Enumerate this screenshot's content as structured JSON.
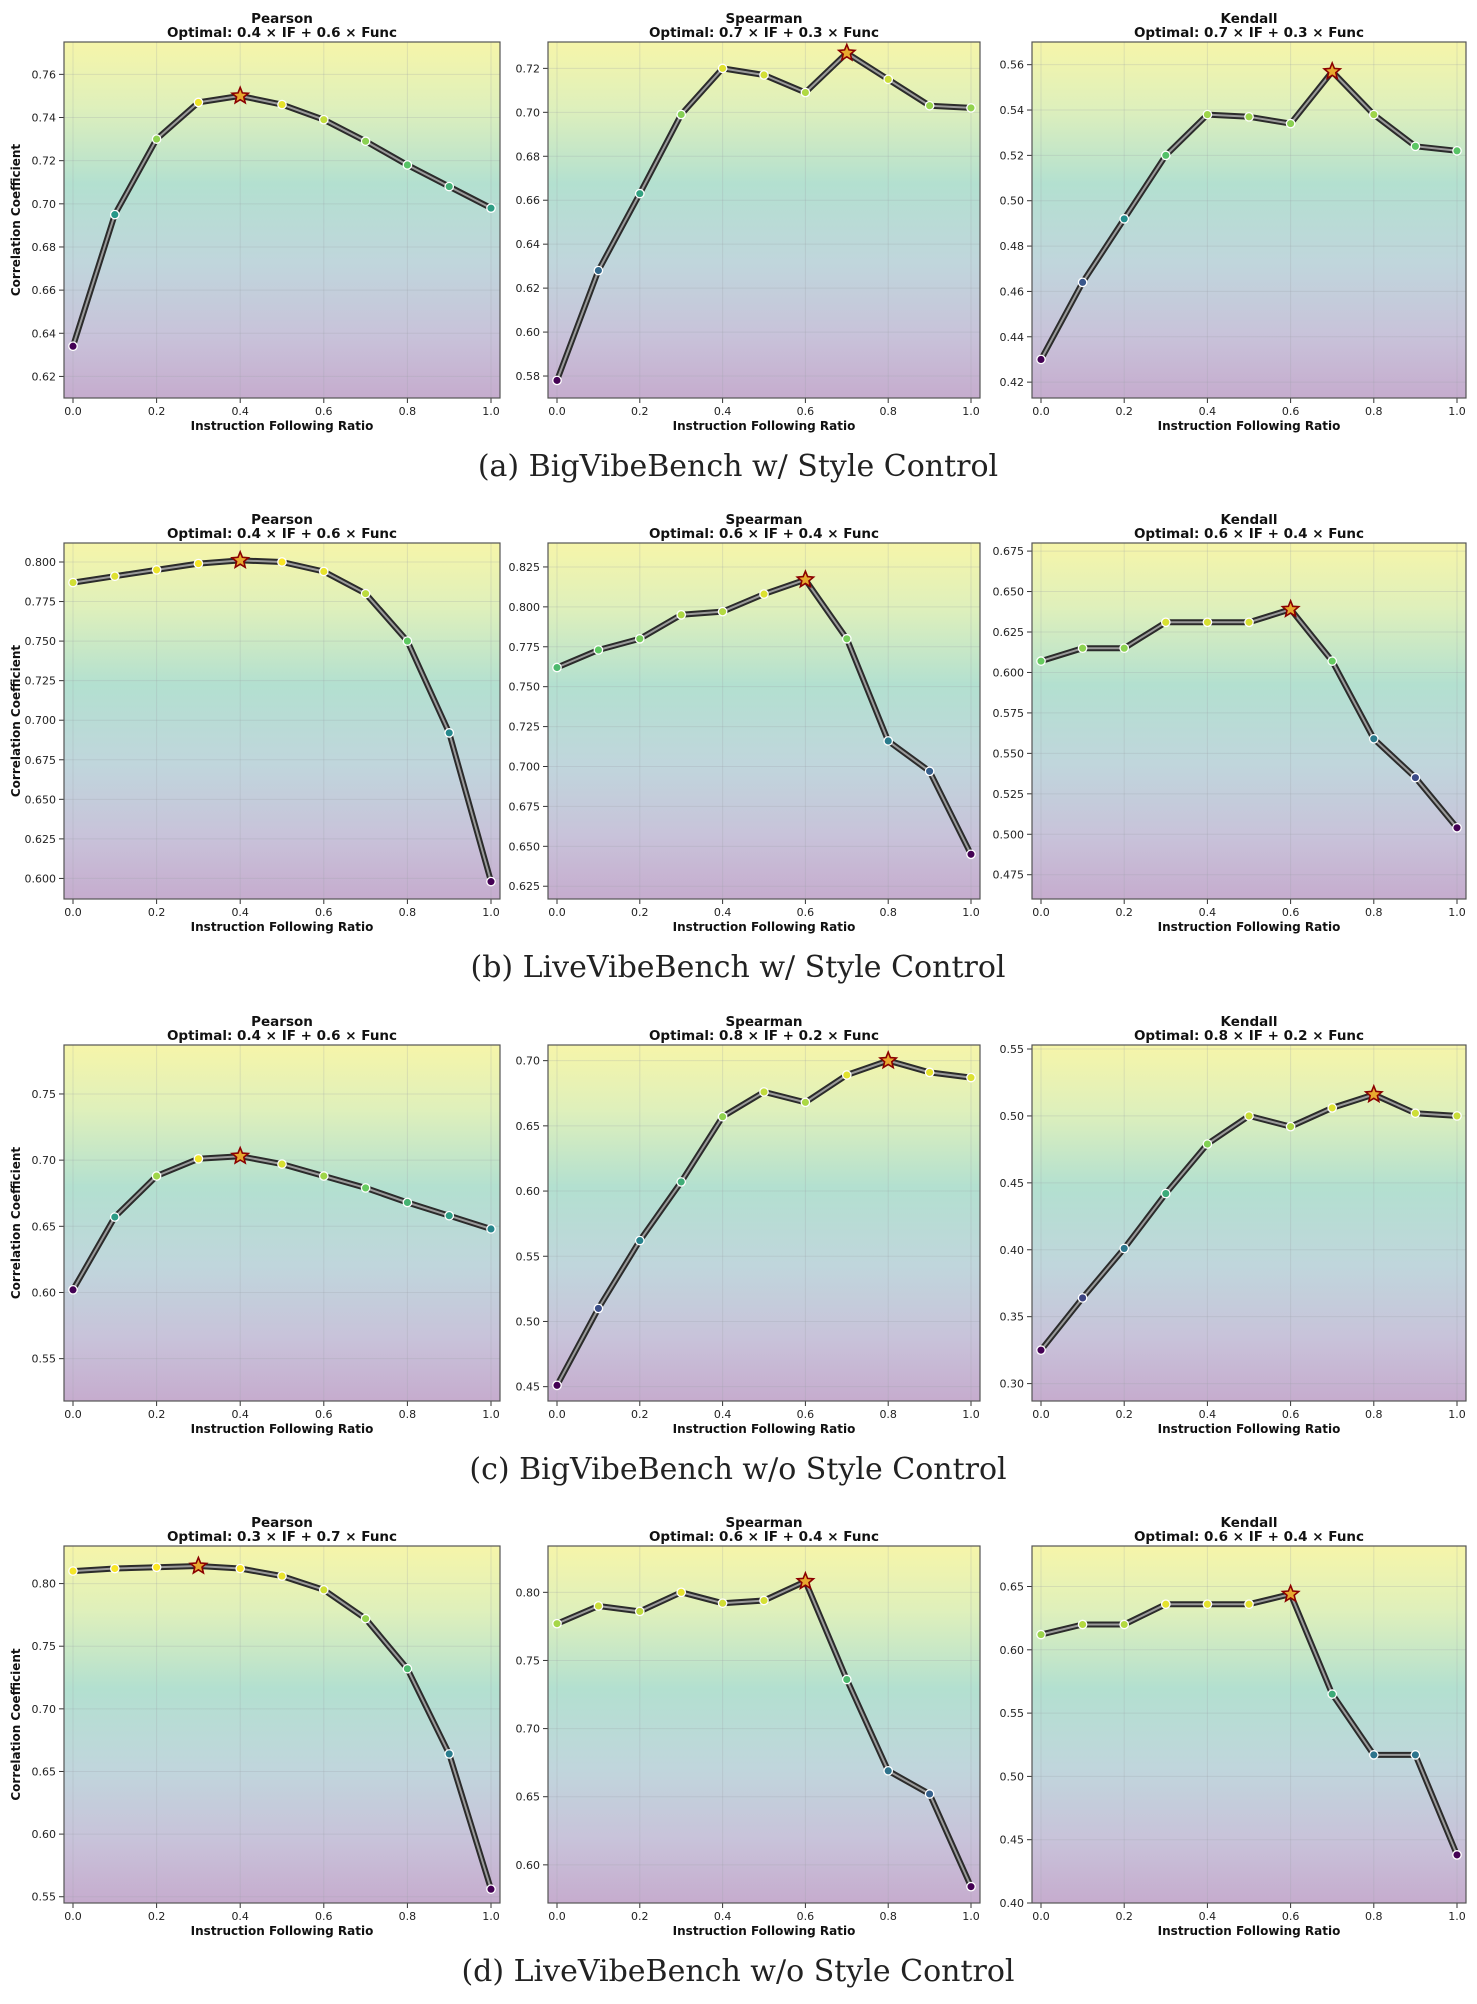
{
  "figure": {
    "x_axis_label": "Instruction Following Ratio",
    "y_axis_label": "Correlation Coefficient",
    "x_ticks": [
      "0.0",
      "0.2",
      "0.4",
      "0.6",
      "0.8",
      "1.0"
    ]
  },
  "chart_data": [
    {
      "group": "a",
      "caption": "(a) BigVibeBench w/ Style Control",
      "panels": [
        {
          "type": "line",
          "title": "Pearson",
          "subtitle": "Optimal: 0.4 × IF + 0.6 × Func",
          "x": [
            0.0,
            0.1,
            0.2,
            0.3,
            0.4,
            0.5,
            0.6,
            0.7,
            0.8,
            0.9,
            1.0
          ],
          "y": [
            0.634,
            0.695,
            0.73,
            0.747,
            0.75,
            0.746,
            0.739,
            0.729,
            0.718,
            0.708,
            0.698
          ],
          "optimal_index": 4,
          "ylim": [
            0.61,
            0.775
          ],
          "y_ticks": [
            "0.62",
            "0.64",
            "0.66",
            "0.68",
            "0.70",
            "0.72",
            "0.74",
            "0.76"
          ],
          "xlabel": "Instruction Following Ratio",
          "ylabel": "Correlation Coefficient"
        },
        {
          "type": "line",
          "title": "Spearman",
          "subtitle": "Optimal: 0.7 × IF + 0.3 × Func",
          "x": [
            0.0,
            0.1,
            0.2,
            0.3,
            0.4,
            0.5,
            0.6,
            0.7,
            0.8,
            0.9,
            1.0
          ],
          "y": [
            0.578,
            0.628,
            0.663,
            0.699,
            0.72,
            0.717,
            0.709,
            0.727,
            0.715,
            0.703,
            0.702
          ],
          "optimal_index": 7,
          "ylim": [
            0.57,
            0.732
          ],
          "y_ticks": [
            "0.58",
            "0.60",
            "0.62",
            "0.64",
            "0.66",
            "0.68",
            "0.70",
            "0.72"
          ],
          "xlabel": "Instruction Following Ratio",
          "ylabel": ""
        },
        {
          "type": "line",
          "title": "Kendall",
          "subtitle": "Optimal: 0.7 × IF + 0.3 × Func",
          "x": [
            0.0,
            0.1,
            0.2,
            0.3,
            0.4,
            0.5,
            0.6,
            0.7,
            0.8,
            0.9,
            1.0
          ],
          "y": [
            0.43,
            0.464,
            0.492,
            0.52,
            0.538,
            0.537,
            0.534,
            0.557,
            0.538,
            0.524,
            0.522
          ],
          "optimal_index": 7,
          "ylim": [
            0.413,
            0.57
          ],
          "y_ticks": [
            "0.42",
            "0.44",
            "0.46",
            "0.48",
            "0.50",
            "0.52",
            "0.54",
            "0.56"
          ],
          "xlabel": "Instruction Following Ratio",
          "ylabel": ""
        }
      ]
    },
    {
      "group": "b",
      "caption": "(b) LiveVibeBench w/ Style Control",
      "panels": [
        {
          "type": "line",
          "title": "Pearson",
          "subtitle": "Optimal: 0.4 × IF + 0.6 × Func",
          "x": [
            0.0,
            0.1,
            0.2,
            0.3,
            0.4,
            0.5,
            0.6,
            0.7,
            0.8,
            0.9,
            1.0
          ],
          "y": [
            0.787,
            0.791,
            0.795,
            0.799,
            0.801,
            0.8,
            0.794,
            0.78,
            0.75,
            0.692,
            0.598
          ],
          "optimal_index": 4,
          "ylim": [
            0.587,
            0.812
          ],
          "y_ticks": [
            "0.600",
            "0.625",
            "0.650",
            "0.675",
            "0.700",
            "0.725",
            "0.750",
            "0.775",
            "0.800"
          ],
          "xlabel": "Instruction Following Ratio",
          "ylabel": "Correlation Coefficient"
        },
        {
          "type": "line",
          "title": "Spearman",
          "subtitle": "Optimal: 0.6 × IF + 0.4 × Func",
          "x": [
            0.0,
            0.1,
            0.2,
            0.3,
            0.4,
            0.5,
            0.6,
            0.7,
            0.8,
            0.9,
            1.0
          ],
          "y": [
            0.762,
            0.773,
            0.78,
            0.795,
            0.797,
            0.808,
            0.817,
            0.78,
            0.716,
            0.697,
            0.645
          ],
          "optimal_index": 6,
          "ylim": [
            0.617,
            0.84
          ],
          "y_ticks": [
            "0.625",
            "0.650",
            "0.675",
            "0.700",
            "0.725",
            "0.750",
            "0.775",
            "0.800",
            "0.825"
          ],
          "xlabel": "Instruction Following Ratio",
          "ylabel": ""
        },
        {
          "type": "line",
          "title": "Kendall",
          "subtitle": "Optimal: 0.6 × IF + 0.4 × Func",
          "x": [
            0.0,
            0.1,
            0.2,
            0.3,
            0.4,
            0.5,
            0.6,
            0.7,
            0.8,
            0.9,
            1.0
          ],
          "y": [
            0.607,
            0.615,
            0.615,
            0.631,
            0.631,
            0.631,
            0.639,
            0.607,
            0.559,
            0.535,
            0.504
          ],
          "optimal_index": 6,
          "ylim": [
            0.46,
            0.68
          ],
          "y_ticks": [
            "0.475",
            "0.500",
            "0.525",
            "0.550",
            "0.575",
            "0.600",
            "0.625",
            "0.650",
            "0.675"
          ],
          "xlabel": "Instruction Following Ratio",
          "ylabel": ""
        }
      ]
    },
    {
      "group": "c",
      "caption": "(c) BigVibeBench w/o Style Control",
      "panels": [
        {
          "type": "line",
          "title": "Pearson",
          "subtitle": "Optimal: 0.4 × IF + 0.6 × Func",
          "x": [
            0.0,
            0.1,
            0.2,
            0.3,
            0.4,
            0.5,
            0.6,
            0.7,
            0.8,
            0.9,
            1.0
          ],
          "y": [
            0.602,
            0.657,
            0.688,
            0.701,
            0.703,
            0.697,
            0.688,
            0.679,
            0.668,
            0.658,
            0.648
          ],
          "optimal_index": 4,
          "ylim": [
            0.518,
            0.787
          ],
          "y_ticks": [
            "0.55",
            "0.60",
            "0.65",
            "0.70",
            "0.75"
          ],
          "xlabel": "Instruction Following Ratio",
          "ylabel": "Correlation Coefficient"
        },
        {
          "type": "line",
          "title": "Spearman",
          "subtitle": "Optimal: 0.8 × IF + 0.2 × Func",
          "x": [
            0.0,
            0.1,
            0.2,
            0.3,
            0.4,
            0.5,
            0.6,
            0.7,
            0.8,
            0.9,
            1.0
          ],
          "y": [
            0.451,
            0.51,
            0.562,
            0.607,
            0.657,
            0.676,
            0.668,
            0.689,
            0.7,
            0.691,
            0.687
          ],
          "optimal_index": 8,
          "ylim": [
            0.439,
            0.712
          ],
          "y_ticks": [
            "0.45",
            "0.50",
            "0.55",
            "0.60",
            "0.65",
            "0.70"
          ],
          "xlabel": "Instruction Following Ratio",
          "ylabel": ""
        },
        {
          "type": "line",
          "title": "Kendall",
          "subtitle": "Optimal: 0.8 × IF + 0.2 × Func",
          "x": [
            0.0,
            0.1,
            0.2,
            0.3,
            0.4,
            0.5,
            0.6,
            0.7,
            0.8,
            0.9,
            1.0
          ],
          "y": [
            0.325,
            0.364,
            0.401,
            0.442,
            0.479,
            0.5,
            0.492,
            0.506,
            0.516,
            0.502,
            0.5
          ],
          "optimal_index": 8,
          "ylim": [
            0.287,
            0.553
          ],
          "y_ticks": [
            "0.30",
            "0.35",
            "0.40",
            "0.45",
            "0.50",
            "0.55"
          ],
          "xlabel": "Instruction Following Ratio",
          "ylabel": ""
        }
      ]
    },
    {
      "group": "d",
      "caption": "(d) LiveVibeBench w/o Style Control",
      "panels": [
        {
          "type": "line",
          "title": "Pearson",
          "subtitle": "Optimal: 0.3 × IF + 0.7 × Func",
          "x": [
            0.0,
            0.1,
            0.2,
            0.3,
            0.4,
            0.5,
            0.6,
            0.7,
            0.8,
            0.9,
            1.0
          ],
          "y": [
            0.81,
            0.812,
            0.813,
            0.814,
            0.812,
            0.806,
            0.795,
            0.772,
            0.732,
            0.664,
            0.556
          ],
          "optimal_index": 3,
          "ylim": [
            0.545,
            0.83
          ],
          "y_ticks": [
            "0.55",
            "0.60",
            "0.65",
            "0.70",
            "0.75",
            "0.80"
          ],
          "xlabel": "Instruction Following Ratio",
          "ylabel": "Correlation Coefficient"
        },
        {
          "type": "line",
          "title": "Spearman",
          "subtitle": "Optimal: 0.6 × IF + 0.4 × Func",
          "x": [
            0.0,
            0.1,
            0.2,
            0.3,
            0.4,
            0.5,
            0.6,
            0.7,
            0.8,
            0.9,
            1.0
          ],
          "y": [
            0.777,
            0.79,
            0.786,
            0.8,
            0.792,
            0.794,
            0.808,
            0.736,
            0.669,
            0.652,
            0.584
          ],
          "optimal_index": 6,
          "ylim": [
            0.572,
            0.834
          ],
          "y_ticks": [
            "0.60",
            "0.65",
            "0.70",
            "0.75",
            "0.80"
          ],
          "xlabel": "Instruction Following Ratio",
          "ylabel": ""
        },
        {
          "type": "line",
          "title": "Kendall",
          "subtitle": "Optimal: 0.6 × IF + 0.4 × Func",
          "x": [
            0.0,
            0.1,
            0.2,
            0.3,
            0.4,
            0.5,
            0.6,
            0.7,
            0.8,
            0.9,
            1.0
          ],
          "y": [
            0.612,
            0.62,
            0.62,
            0.636,
            0.636,
            0.636,
            0.644,
            0.565,
            0.517,
            0.517,
            0.438
          ],
          "optimal_index": 6,
          "ylim": [
            0.4,
            0.682
          ],
          "y_ticks": [
            "0.40",
            "0.45",
            "0.50",
            "0.55",
            "0.60",
            "0.65"
          ],
          "xlabel": "Instruction Following Ratio",
          "ylabel": ""
        }
      ]
    }
  ]
}
